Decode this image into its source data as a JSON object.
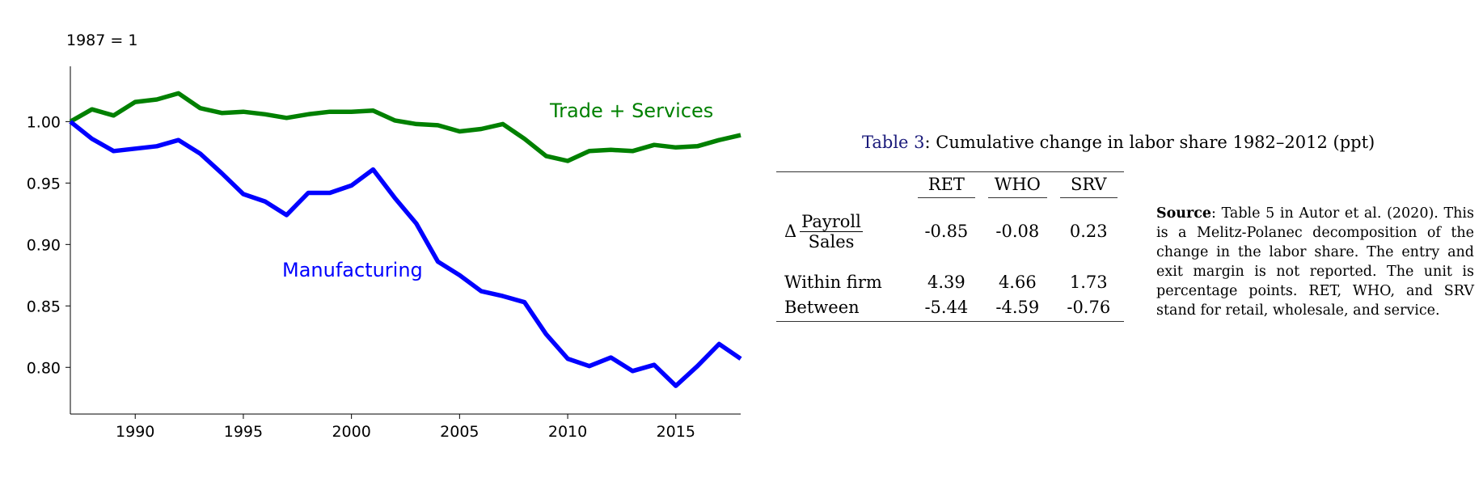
{
  "chart_data": {
    "type": "line",
    "unit_note": "1987 = 1",
    "xlim": [
      1987,
      2018
    ],
    "ylim": [
      0.762,
      1.045
    ],
    "xticks": [
      1990,
      1995,
      2000,
      2005,
      2010,
      2015
    ],
    "yticks": [
      0.8,
      0.85,
      0.9,
      0.95,
      1.0
    ],
    "ytick_labels": [
      "0.80",
      "0.85",
      "0.90",
      "0.95",
      "1.00"
    ],
    "grid": false,
    "series": [
      {
        "name": "Trade + Services",
        "color": "#008000",
        "x": [
          1987,
          1988,
          1989,
          1990,
          1991,
          1992,
          1993,
          1994,
          1995,
          1996,
          1997,
          1998,
          1999,
          2000,
          2001,
          2002,
          2003,
          2004,
          2005,
          2006,
          2007,
          2008,
          2009,
          2010,
          2011,
          2012,
          2013,
          2014,
          2015,
          2016,
          2017,
          2018
        ],
        "y": [
          1.0,
          1.01,
          1.005,
          1.016,
          1.018,
          1.023,
          1.011,
          1.007,
          1.008,
          1.006,
          1.003,
          1.006,
          1.008,
          1.008,
          1.009,
          1.001,
          0.998,
          0.997,
          0.992,
          0.994,
          0.998,
          0.986,
          0.972,
          0.968,
          0.976,
          0.977,
          0.976,
          0.981,
          0.979,
          0.98,
          0.985,
          0.989
        ]
      },
      {
        "name": "Manufacturing",
        "color": "#0000ff",
        "x": [
          1987,
          1988,
          1989,
          1990,
          1991,
          1992,
          1993,
          1994,
          1995,
          1996,
          1997,
          1998,
          1999,
          2000,
          2001,
          2002,
          2003,
          2004,
          2005,
          2006,
          2007,
          2008,
          2009,
          2010,
          2011,
          2012,
          2013,
          2014,
          2015,
          2016,
          2017,
          2018
        ],
        "y": [
          1.0,
          0.986,
          0.976,
          0.978,
          0.98,
          0.985,
          0.974,
          0.958,
          0.941,
          0.935,
          0.924,
          0.942,
          0.942,
          0.948,
          0.961,
          0.938,
          0.917,
          0.886,
          0.875,
          0.862,
          0.858,
          0.853,
          0.827,
          0.807,
          0.801,
          0.808,
          0.797,
          0.802,
          0.785,
          0.801,
          0.819,
          0.807
        ]
      }
    ]
  },
  "table": {
    "caption_ref": "Table 3",
    "caption_text": ": Cumulative change in labor share 1982–2012 (ppt)",
    "columns": [
      "RET",
      "WHO",
      "SRV"
    ],
    "delta_symbol": "Δ",
    "frac_num": "Payroll",
    "frac_den": "Sales",
    "row0_values": [
      "-0.85",
      "-0.08",
      "0.23"
    ],
    "rows": [
      {
        "label": "Within firm",
        "values": [
          "4.39",
          "4.66",
          "1.73"
        ]
      },
      {
        "label": "Between",
        "values": [
          "-5.44",
          "-4.59",
          "-0.76"
        ]
      }
    ]
  },
  "note": {
    "bold": "Source",
    "text": ": Table 5 in Autor et al. (2020). This is a Melitz-Polanec decomposition of the change in the labor share. The entry and exit margin is not reported. The unit is percentage points. RET, WHO, and SRV stand for retail, wholesale, and service."
  }
}
